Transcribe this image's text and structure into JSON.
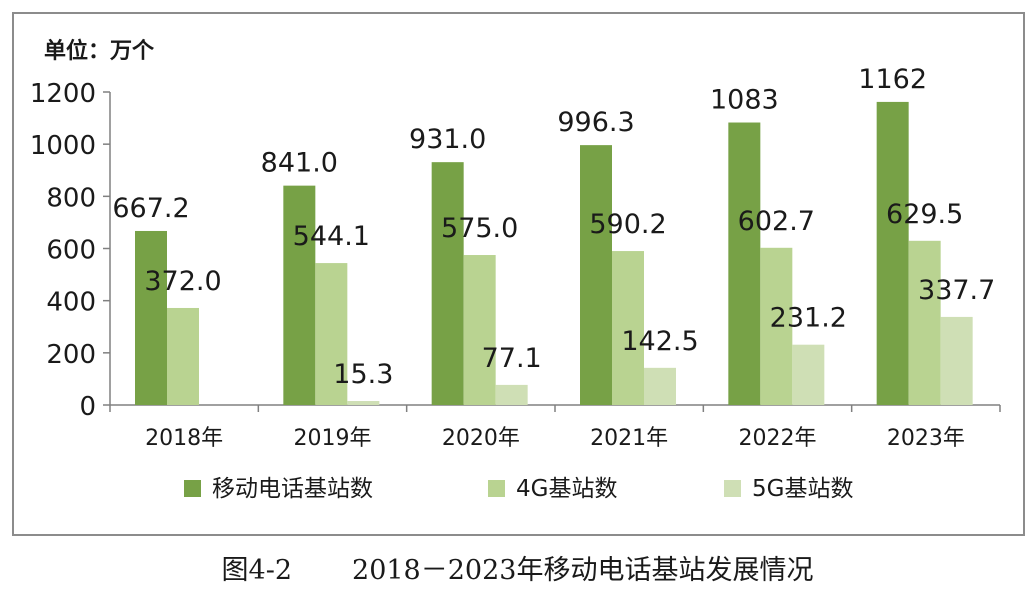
{
  "chart_data": {
    "type": "bar",
    "unit_label": "单位：万个",
    "categories": [
      "2018年",
      "2019年",
      "2020年",
      "2021年",
      "2022年",
      "2023年"
    ],
    "series": [
      {
        "name": "移动电话基站数",
        "color": "#77a146",
        "values": [
          667.2,
          841.0,
          931.0,
          996.3,
          1083,
          1162
        ],
        "labels": [
          "667.2",
          "841.0",
          "931.0",
          "996.3",
          "1083",
          "1162"
        ]
      },
      {
        "name": "4G基站数",
        "color": "#b9d391",
        "values": [
          372.0,
          544.1,
          575.0,
          590.2,
          602.7,
          629.5
        ],
        "labels": [
          "372.0",
          "544.1",
          "575.0",
          "590.2",
          "602.7",
          "629.5"
        ]
      },
      {
        "name": "5G基站数",
        "color": "#cfdfb5",
        "values": [
          null,
          15.3,
          77.1,
          142.5,
          231.2,
          337.7
        ],
        "labels": [
          "",
          "15.3",
          "77.1",
          "142.5",
          "231.2",
          "337.7"
        ]
      }
    ],
    "ylim": [
      0,
      1200
    ],
    "yticks": [
      0,
      200,
      400,
      600,
      800,
      1000,
      1200
    ],
    "legend_position": "bottom"
  },
  "caption": {
    "figure_number": "图4-2",
    "title": "2018－2023年移动电话基站发展情况"
  }
}
